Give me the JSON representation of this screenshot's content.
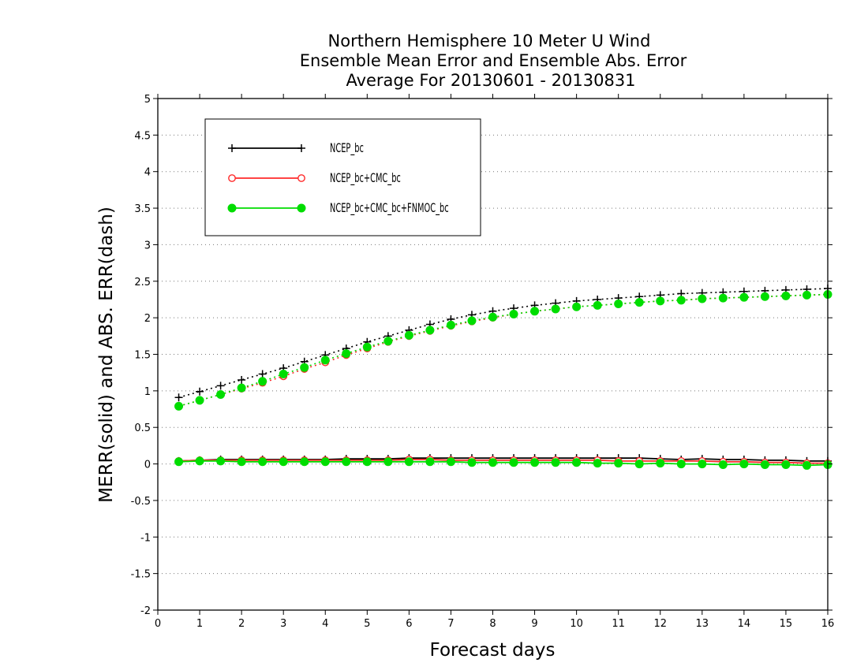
{
  "chart_data": {
    "type": "line",
    "title": [
      "Northern Hemisphere 10 Meter U Wind",
      "Ensemble Mean Error and Ensemble Abs. Error",
      "Average For 20130601 - 20130831"
    ],
    "xlabel": "Forecast days",
    "ylabel": "MERR(solid) and ABS. ERR(dash)",
    "xlim": [
      0,
      16
    ],
    "ylim": [
      -2,
      5
    ],
    "xticks": [
      0,
      1,
      2,
      3,
      4,
      5,
      6,
      7,
      8,
      9,
      10,
      11,
      12,
      13,
      14,
      15,
      16
    ],
    "yticks": [
      -2,
      -1.5,
      -1,
      -0.5,
      0,
      0.5,
      1,
      1.5,
      2,
      2.5,
      3,
      3.5,
      4,
      4.5,
      5
    ],
    "ytick_labels": [
      "-2",
      "-1.5",
      "-1",
      "-0.5",
      "0",
      "0.5",
      "1",
      "1.5",
      "2",
      "2.5",
      "3",
      "3.5",
      "4",
      "4.5",
      "5"
    ],
    "grid": "horizontal dotted",
    "legend_position": "top-left",
    "x": [
      0.5,
      1,
      1.5,
      2,
      2.5,
      3,
      3.5,
      4,
      4.5,
      5,
      5.5,
      6,
      6.5,
      7,
      7.5,
      8,
      8.5,
      9,
      9.5,
      10,
      10.5,
      11,
      11.5,
      12,
      12.5,
      13,
      13.5,
      14,
      14.5,
      15,
      15.5,
      16
    ],
    "series": [
      {
        "name": "NCEP_bc",
        "color": "#000000",
        "marker": "plus",
        "abs_err": [
          0.91,
          0.99,
          1.07,
          1.15,
          1.23,
          1.31,
          1.4,
          1.49,
          1.58,
          1.67,
          1.75,
          1.83,
          1.91,
          1.98,
          2.04,
          2.09,
          2.13,
          2.17,
          2.2,
          2.23,
          2.25,
          2.27,
          2.29,
          2.31,
          2.33,
          2.34,
          2.35,
          2.36,
          2.37,
          2.38,
          2.39,
          2.4
        ],
        "mean_err": [
          0.04,
          0.05,
          0.06,
          0.06,
          0.06,
          0.06,
          0.06,
          0.06,
          0.07,
          0.07,
          0.07,
          0.08,
          0.08,
          0.08,
          0.08,
          0.08,
          0.08,
          0.08,
          0.08,
          0.08,
          0.08,
          0.08,
          0.08,
          0.07,
          0.06,
          0.07,
          0.06,
          0.06,
          0.05,
          0.05,
          0.04,
          0.04
        ]
      },
      {
        "name": "NCEP_bc+CMC_bc",
        "color": "#ff2a2a",
        "marker": "open-circle",
        "abs_err": [
          0.79,
          0.87,
          0.95,
          1.03,
          1.11,
          1.2,
          1.3,
          1.39,
          1.49,
          1.58,
          1.67,
          1.75,
          1.82,
          1.89,
          1.95,
          2.0,
          2.05,
          2.09,
          2.12,
          2.15,
          2.17,
          2.19,
          2.21,
          2.23,
          2.24,
          2.26,
          2.27,
          2.28,
          2.29,
          2.3,
          2.31,
          2.32
        ],
        "mean_err": [
          0.04,
          0.05,
          0.05,
          0.05,
          0.05,
          0.05,
          0.05,
          0.05,
          0.05,
          0.05,
          0.05,
          0.06,
          0.06,
          0.05,
          0.05,
          0.05,
          0.05,
          0.05,
          0.05,
          0.05,
          0.05,
          0.04,
          0.04,
          0.04,
          0.04,
          0.04,
          0.03,
          0.03,
          0.02,
          0.02,
          0.01,
          0.01
        ]
      },
      {
        "name": "NCEP_bc+CMC_bc+FNMOC_bc",
        "color": "#00dd00",
        "marker": "filled-circle",
        "abs_err": [
          0.79,
          0.87,
          0.95,
          1.04,
          1.13,
          1.23,
          1.32,
          1.42,
          1.51,
          1.6,
          1.68,
          1.76,
          1.83,
          1.9,
          1.96,
          2.01,
          2.05,
          2.09,
          2.12,
          2.15,
          2.17,
          2.19,
          2.21,
          2.23,
          2.24,
          2.26,
          2.27,
          2.28,
          2.29,
          2.3,
          2.31,
          2.32
        ],
        "mean_err": [
          0.03,
          0.04,
          0.04,
          0.03,
          0.03,
          0.03,
          0.03,
          0.03,
          0.03,
          0.03,
          0.03,
          0.03,
          0.03,
          0.03,
          0.02,
          0.02,
          0.02,
          0.02,
          0.02,
          0.02,
          0.01,
          0.01,
          0.0,
          0.01,
          0.0,
          0.0,
          -0.01,
          0.0,
          -0.01,
          -0.01,
          -0.02,
          -0.01
        ]
      }
    ]
  }
}
